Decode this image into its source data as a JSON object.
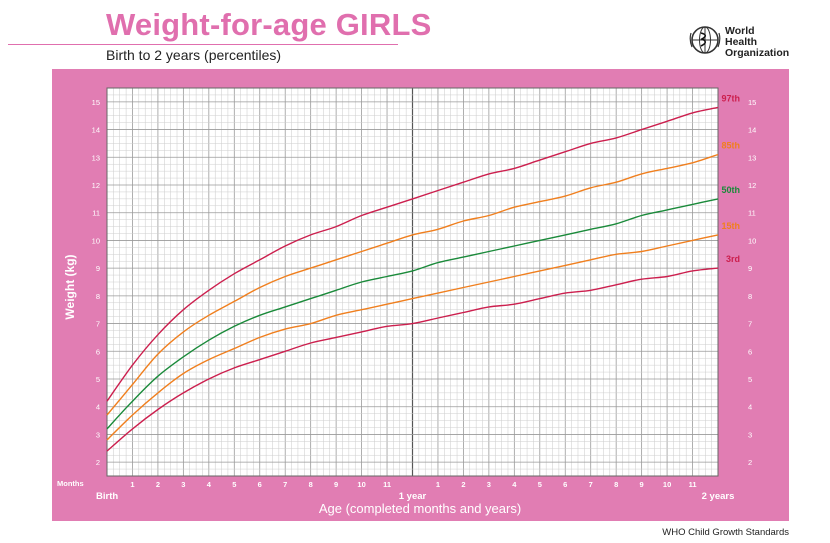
{
  "header": {
    "title": "Weight-for-age GIRLS",
    "subtitle": "Birth to 2 years (percentiles)",
    "logo_line1": "World Health",
    "logo_line2": "Organization",
    "logo_icon": "who-emblem-icon"
  },
  "footer": {
    "text": "WHO Child Growth Standards"
  },
  "colors": {
    "panel": "#e17db3",
    "title": "#e06fae",
    "p97": "#cc1f4e",
    "p85": "#f07f1e",
    "p50": "#1a8a3a",
    "p15": "#f07f1e",
    "p3": "#cc1f4e"
  },
  "chart_data": {
    "type": "line",
    "title": "Weight-for-age GIRLS",
    "subtitle": "Birth to 2 years (percentiles)",
    "xlabel": "Age (completed months and years)",
    "ylabel": "Weight (kg)",
    "x_unit_label": "Months",
    "xlim": [
      0,
      24
    ],
    "ylim": [
      1.5,
      15.5
    ],
    "grid": true,
    "legend": "series labels at right end of lines",
    "x": [
      0,
      1,
      2,
      3,
      4,
      5,
      6,
      7,
      8,
      9,
      10,
      11,
      12,
      13,
      14,
      15,
      16,
      17,
      18,
      19,
      20,
      21,
      22,
      23,
      24
    ],
    "x_tick_labels": [
      "Birth",
      "1",
      "2",
      "3",
      "4",
      "5",
      "6",
      "7",
      "8",
      "9",
      "10",
      "11",
      "1 year",
      "1",
      "2",
      "3",
      "4",
      "5",
      "6",
      "7",
      "8",
      "9",
      "10",
      "11",
      "2 years"
    ],
    "y_ticks": [
      2,
      3,
      4,
      5,
      6,
      7,
      8,
      9,
      10,
      11,
      12,
      13,
      14,
      15
    ],
    "series": [
      {
        "name": "97th",
        "color": "#cc1f4e",
        "values": [
          4.2,
          5.5,
          6.6,
          7.5,
          8.2,
          8.8,
          9.3,
          9.8,
          10.2,
          10.5,
          10.9,
          11.2,
          11.5,
          11.8,
          12.1,
          12.4,
          12.6,
          12.9,
          13.2,
          13.5,
          13.7,
          14.0,
          14.3,
          14.6,
          14.8
        ]
      },
      {
        "name": "85th",
        "color": "#f07f1e",
        "values": [
          3.7,
          4.8,
          5.9,
          6.7,
          7.3,
          7.8,
          8.3,
          8.7,
          9.0,
          9.3,
          9.6,
          9.9,
          10.2,
          10.4,
          10.7,
          10.9,
          11.2,
          11.4,
          11.6,
          11.9,
          12.1,
          12.4,
          12.6,
          12.8,
          13.1
        ]
      },
      {
        "name": "50th",
        "color": "#1a8a3a",
        "values": [
          3.2,
          4.2,
          5.1,
          5.8,
          6.4,
          6.9,
          7.3,
          7.6,
          7.9,
          8.2,
          8.5,
          8.7,
          8.9,
          9.2,
          9.4,
          9.6,
          9.8,
          10.0,
          10.2,
          10.4,
          10.6,
          10.9,
          11.1,
          11.3,
          11.5
        ]
      },
      {
        "name": "15th",
        "color": "#f07f1e",
        "values": [
          2.8,
          3.7,
          4.5,
          5.2,
          5.7,
          6.1,
          6.5,
          6.8,
          7.0,
          7.3,
          7.5,
          7.7,
          7.9,
          8.1,
          8.3,
          8.5,
          8.7,
          8.9,
          9.1,
          9.3,
          9.5,
          9.6,
          9.8,
          10.0,
          10.2
        ]
      },
      {
        "name": "3rd",
        "color": "#cc1f4e",
        "values": [
          2.4,
          3.2,
          3.9,
          4.5,
          5.0,
          5.4,
          5.7,
          6.0,
          6.3,
          6.5,
          6.7,
          6.9,
          7.0,
          7.2,
          7.4,
          7.6,
          7.7,
          7.9,
          8.1,
          8.2,
          8.4,
          8.6,
          8.7,
          8.9,
          9.0
        ]
      }
    ]
  }
}
